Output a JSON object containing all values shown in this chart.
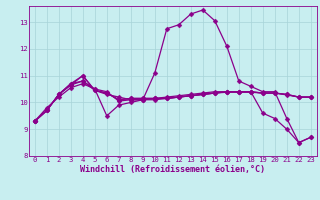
{
  "xlabel": "Windchill (Refroidissement éolien,°C)",
  "background_color": "#c8eef0",
  "line_color": "#8b008b",
  "grid_color": "#a8d4d8",
  "series": [
    [
      9.3,
      9.7,
      10.3,
      10.7,
      10.8,
      10.5,
      9.5,
      9.9,
      10.0,
      10.1,
      11.1,
      12.75,
      12.9,
      13.3,
      13.45,
      13.05,
      12.1,
      10.8,
      10.6,
      10.4,
      10.4,
      9.4,
      8.5,
      8.7
    ],
    [
      9.3,
      9.7,
      10.3,
      10.7,
      11.0,
      10.45,
      10.3,
      10.2,
      10.1,
      10.1,
      10.15,
      10.2,
      10.25,
      10.3,
      10.35,
      10.4,
      10.4,
      10.4,
      10.4,
      9.6,
      9.4,
      9.0,
      8.5,
      8.7
    ],
    [
      9.3,
      9.7,
      10.3,
      10.65,
      10.8,
      10.45,
      10.35,
      10.1,
      10.15,
      10.15,
      10.15,
      10.15,
      10.2,
      10.25,
      10.3,
      10.35,
      10.4,
      10.4,
      10.4,
      10.35,
      10.35,
      10.3,
      10.2,
      10.2
    ],
    [
      9.3,
      9.7,
      10.3,
      10.65,
      11.0,
      10.45,
      10.35,
      10.1,
      10.15,
      10.15,
      10.15,
      10.15,
      10.2,
      10.25,
      10.3,
      10.35,
      10.4,
      10.4,
      10.4,
      10.35,
      10.35,
      10.3,
      10.2,
      10.2
    ],
    [
      9.3,
      9.8,
      10.2,
      10.55,
      10.7,
      10.5,
      10.4,
      10.05,
      10.1,
      10.1,
      10.1,
      10.15,
      10.2,
      10.25,
      10.3,
      10.35,
      10.38,
      10.38,
      10.38,
      10.35,
      10.35,
      10.28,
      10.2,
      10.2
    ]
  ],
  "xlim_min": -0.5,
  "xlim_max": 23.5,
  "ylim_min": 8.0,
  "ylim_max": 13.6,
  "xticks": [
    0,
    1,
    2,
    3,
    4,
    5,
    6,
    7,
    8,
    9,
    10,
    11,
    12,
    13,
    14,
    15,
    16,
    17,
    18,
    19,
    20,
    21,
    22,
    23
  ],
  "yticks": [
    8,
    9,
    10,
    11,
    12,
    13
  ],
  "markersize": 2.5,
  "linewidth": 0.9,
  "tick_fontsize": 5.2,
  "label_fontsize": 6.0
}
